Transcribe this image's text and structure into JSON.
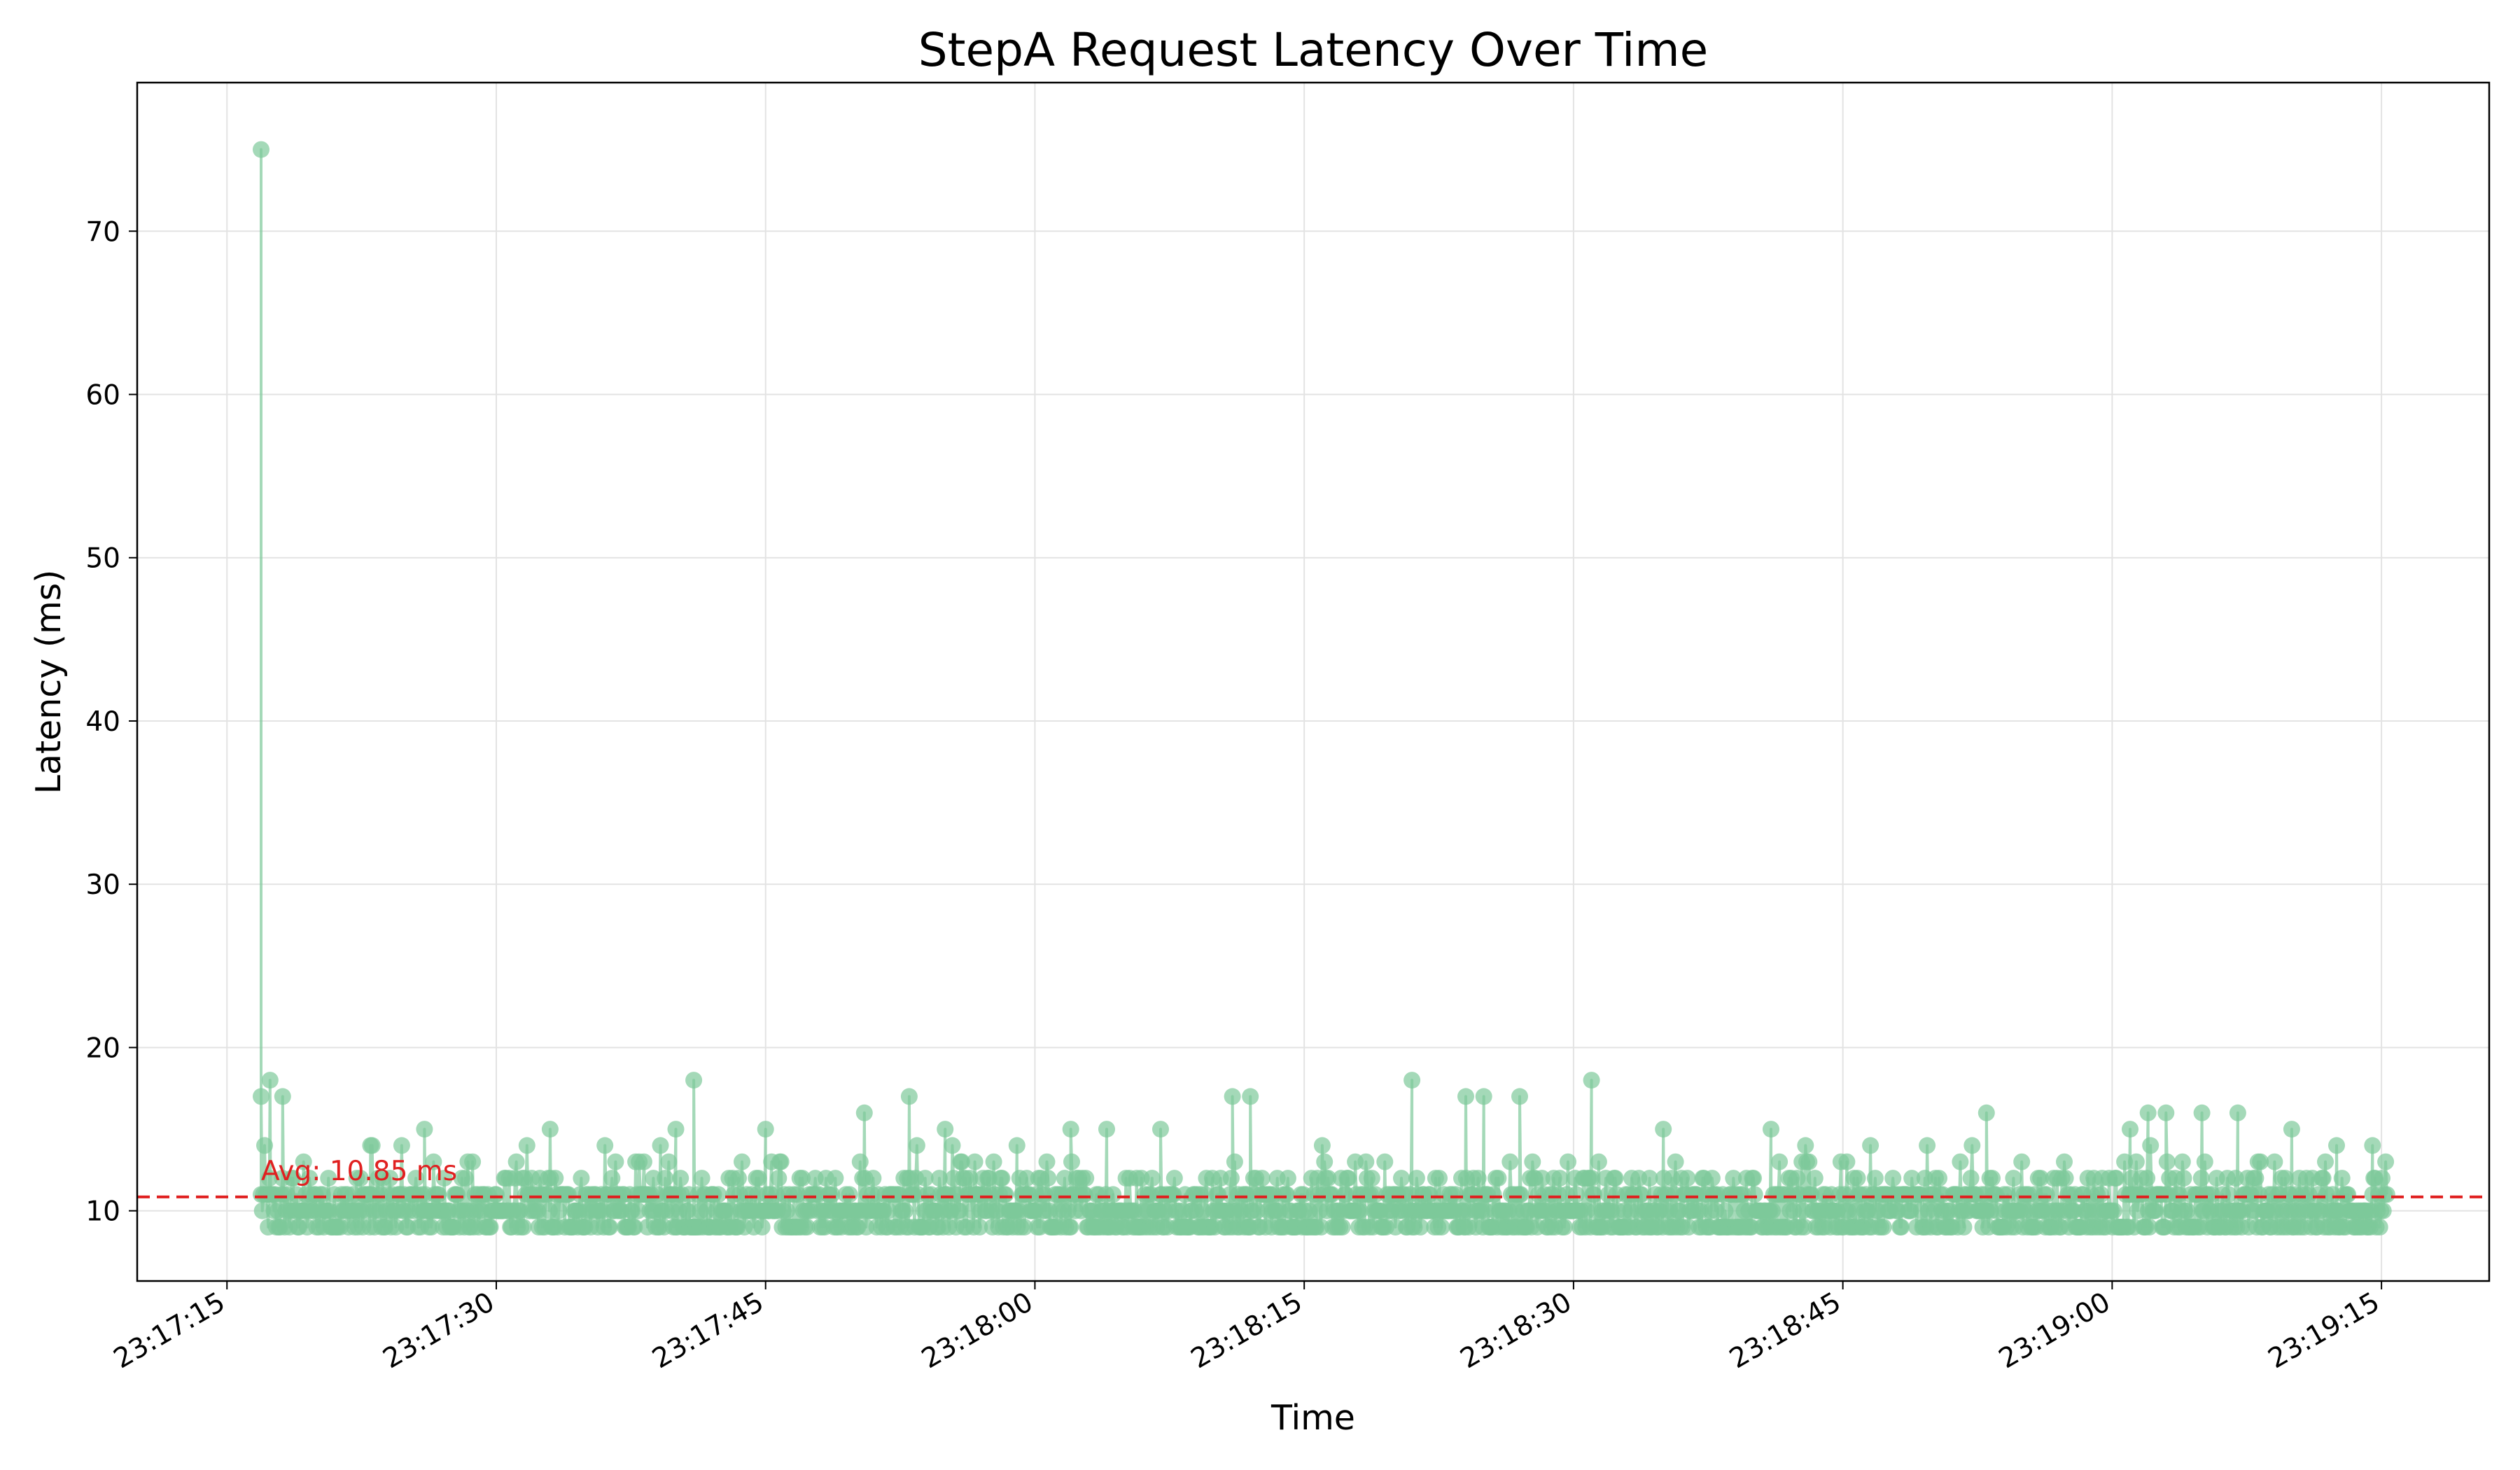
{
  "chart_data": {
    "type": "line",
    "title": "StepA Request Latency Over Time",
    "xlabel": "Time",
    "ylabel": "Latency (ms)",
    "grid": true,
    "x_ticks": [
      "23:17:15",
      "23:17:30",
      "23:17:45",
      "23:18:00",
      "23:18:15",
      "23:18:30",
      "23:18:45",
      "23:19:00",
      "23:19:15"
    ],
    "y_ticks": [
      10,
      20,
      30,
      40,
      50,
      60,
      70
    ],
    "xlim": [
      "23:17:10",
      "23:19:21"
    ],
    "ylim": [
      5.7,
      79.1
    ],
    "x_range": [
      "23:17:16.9",
      "23:19:15.3"
    ],
    "series": [
      {
        "color": "#7ec99a",
        "marker": "circle",
        "typical_range": [
          9,
          12
        ],
        "notable_points": [
          {
            "x": "23:17:16.9",
            "y": 75
          },
          {
            "x": "23:17:16.9",
            "y": 17
          },
          {
            "x": "23:17:17.4",
            "y": 18
          },
          {
            "x": "23:17:18.1",
            "y": 17
          },
          {
            "x": "23:17:23.0",
            "y": 14
          },
          {
            "x": "23:17:26.0",
            "y": 15
          },
          {
            "x": "23:17:33.0",
            "y": 15
          },
          {
            "x": "23:17:40.0",
            "y": 15
          },
          {
            "x": "23:17:41.0",
            "y": 18
          },
          {
            "x": "23:17:45.0",
            "y": 15
          },
          {
            "x": "23:17:50.5",
            "y": 16
          },
          {
            "x": "23:17:53.0",
            "y": 17
          },
          {
            "x": "23:17:55.0",
            "y": 15
          },
          {
            "x": "23:17:59.0",
            "y": 14
          },
          {
            "x": "23:18:02.0",
            "y": 15
          },
          {
            "x": "23:18:04.0",
            "y": 15
          },
          {
            "x": "23:18:07.0",
            "y": 15
          },
          {
            "x": "23:18:11.0",
            "y": 17
          },
          {
            "x": "23:18:12.0",
            "y": 17
          },
          {
            "x": "23:18:21.0",
            "y": 18
          },
          {
            "x": "23:18:24.0",
            "y": 17
          },
          {
            "x": "23:18:25.0",
            "y": 17
          },
          {
            "x": "23:18:27.0",
            "y": 17
          },
          {
            "x": "23:18:31.0",
            "y": 18
          },
          {
            "x": "23:18:35.0",
            "y": 15
          },
          {
            "x": "23:18:41.0",
            "y": 15
          },
          {
            "x": "23:18:53.0",
            "y": 16
          },
          {
            "x": "23:19:01.0",
            "y": 15
          },
          {
            "x": "23:19:02.0",
            "y": 16
          },
          {
            "x": "23:19:03.0",
            "y": 16
          },
          {
            "x": "23:19:05.0",
            "y": 16
          },
          {
            "x": "23:19:07.0",
            "y": 16
          },
          {
            "x": "23:19:10.0",
            "y": 15
          },
          {
            "x": "23:19:12.5",
            "y": 14
          },
          {
            "x": "23:19:14.5",
            "y": 14
          }
        ]
      }
    ],
    "average": {
      "value": 10.85,
      "label": "Avg: 10.85 ms",
      "color": "#e02020",
      "style": "dashed"
    }
  }
}
